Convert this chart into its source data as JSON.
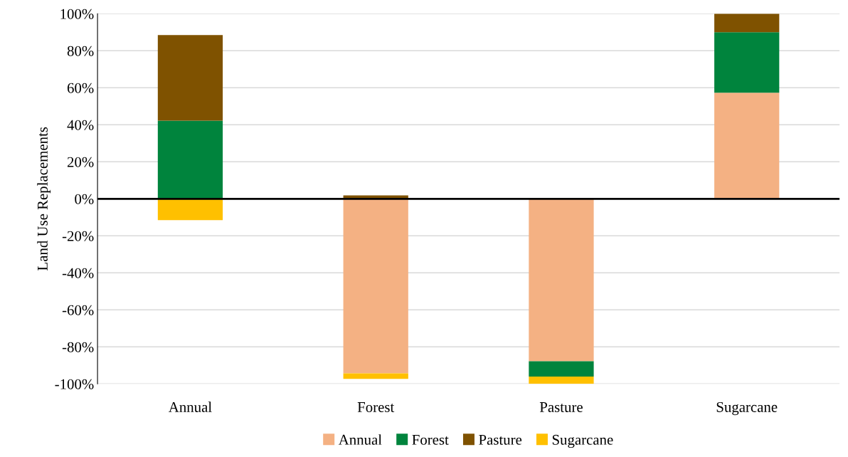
{
  "chart_data": {
    "type": "bar",
    "stacked": true,
    "ylabel": "Land Use Replacements",
    "categories": [
      "Annual",
      "Forest",
      "Pasture",
      "Sugarcane"
    ],
    "series": [
      {
        "name": "Annual",
        "color": "#f4b183",
        "values": [
          0,
          -94.3,
          -87.8,
          57.3
        ]
      },
      {
        "name": "Forest",
        "color": "#00843d",
        "values": [
          42.2,
          0,
          -8.2,
          32.7
        ]
      },
      {
        "name": "Pasture",
        "color": "#7f5200",
        "values": [
          46.3,
          1.8,
          0,
          10
        ]
      },
      {
        "name": "Sugarcane",
        "color": "#ffc000",
        "values": [
          -11.5,
          -3.0,
          -4,
          0
        ]
      }
    ],
    "ylim": [
      -100,
      100
    ],
    "yticks": [
      {
        "value": -100,
        "label": "-100%"
      },
      {
        "value": -80,
        "label": "-80%"
      },
      {
        "value": -60,
        "label": "-60%"
      },
      {
        "value": -40,
        "label": "-40%"
      },
      {
        "value": -20,
        "label": "-20%"
      },
      {
        "value": 0,
        "label": "0%"
      },
      {
        "value": 20,
        "label": "20%"
      },
      {
        "value": 40,
        "label": "40%"
      },
      {
        "value": 60,
        "label": "60%"
      },
      {
        "value": 80,
        "label": "80%"
      },
      {
        "value": 100,
        "label": "100%"
      }
    ],
    "ref_lines": [
      {
        "axis": "y",
        "value": 0,
        "color": "#000000"
      }
    ],
    "grid": "y",
    "legend": "bottom"
  }
}
